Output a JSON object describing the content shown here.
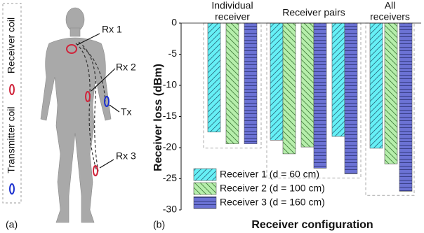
{
  "figure": {
    "panel_a": "(a)",
    "labels": [
      "Rx 1",
      "Rx 2",
      "Tx",
      "Rx 3"
    ],
    "legend_receiver": "Receiver coil",
    "legend_transmitter": "Transmitter coil"
  },
  "chart_data": {
    "type": "bar",
    "panel": "(b)",
    "y_label": "Receiver loss (dBm)",
    "x_label": "Receiver configuration",
    "group_labels": [
      [
        "Individual",
        "receiver"
      ],
      [
        "Receiver pairs"
      ],
      [
        "All",
        "receivers"
      ]
    ],
    "categories": [
      null,
      null,
      null,
      null,
      null
    ],
    "series": [
      {
        "name": "Receiver 1 (d = 60 cm)",
        "color": "#66f0f6",
        "hatch": "/",
        "values": [
          -17.5,
          -18.8,
          null,
          -18.2,
          -20.1
        ]
      },
      {
        "name": "Receiver 2 (d = 100 cm)",
        "color": "#b6eeab",
        "hatch": "\\",
        "values": [
          -19.4,
          -21.0,
          -19.9,
          null,
          -22.6
        ]
      },
      {
        "name": "Receiver 3 (d = 160 cm)",
        "color": "#6b72d4",
        "hatch": "-",
        "values": [
          -19.4,
          null,
          -23.3,
          -24.2,
          -27.0
        ]
      }
    ],
    "ylim": [
      -30,
      0
    ],
    "yticks": [
      0,
      -5,
      -10,
      -15,
      -20,
      -25,
      -30
    ],
    "grid": false,
    "legend": "lower left"
  }
}
